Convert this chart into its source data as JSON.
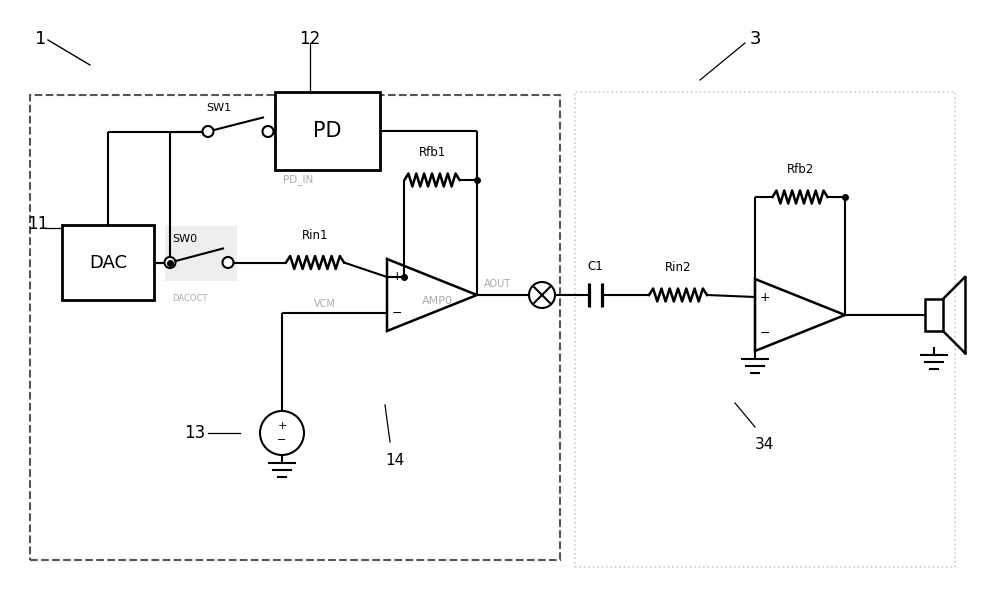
{
  "bg_color": "#ffffff",
  "black": "#000000",
  "gray": "#aaaaaa",
  "dark_gray": "#555555",
  "light_gray": "#cccccc",
  "figsize": [
    10.0,
    6.15
  ],
  "dpi": 100,
  "xlim": [
    0,
    10
  ],
  "ylim": [
    0,
    6.15
  ]
}
